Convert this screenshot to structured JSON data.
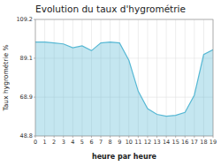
{
  "chart_data": {
    "type": "area",
    "title": "Evolution du taux d'hygrométrie",
    "xlabel": "heure par heure",
    "ylabel": "Taux hygrométrie %",
    "x": [
      0,
      1,
      2,
      3,
      4,
      5,
      6,
      7,
      8,
      9,
      10,
      11,
      12,
      13,
      14,
      15,
      16,
      17,
      18,
      19
    ],
    "values": [
      97.5,
      97.5,
      97.0,
      96.5,
      94.5,
      95.5,
      93.0,
      97.0,
      97.5,
      97.0,
      88.0,
      72.0,
      63.0,
      60.0,
      59.0,
      59.5,
      61.0,
      70.0,
      91.0,
      93.5
    ],
    "xlim": [
      0,
      19
    ],
    "xticks": [
      0,
      1,
      2,
      3,
      4,
      5,
      6,
      7,
      8,
      9,
      10,
      11,
      12,
      13,
      14,
      15,
      16,
      17,
      18,
      19
    ],
    "ylim": [
      48.8,
      109.2
    ],
    "yticks": [
      48.8,
      68.9,
      89.1,
      109.2
    ],
    "grid": true,
    "color": "#57b8d4"
  }
}
